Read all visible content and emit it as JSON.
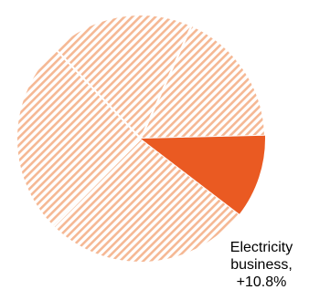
{
  "chart_data": {
    "type": "pie",
    "title": "",
    "slices": [
      {
        "label": "",
        "value": 27.0,
        "style": "hatched"
      },
      {
        "label": "",
        "value": 25.5,
        "style": "hatched"
      },
      {
        "label": "",
        "value": 18.8,
        "style": "hatched"
      },
      {
        "label": "",
        "value": 17.9,
        "style": "hatched"
      },
      {
        "label_lines": [
          "Electricity",
          "business,",
          "+10.8%"
        ],
        "value": 10.8,
        "style": "solid"
      }
    ],
    "colors": {
      "highlight": "#ea5a22",
      "hatch": "#f5b894",
      "separator": "#ffffff"
    },
    "legend": "none"
  }
}
